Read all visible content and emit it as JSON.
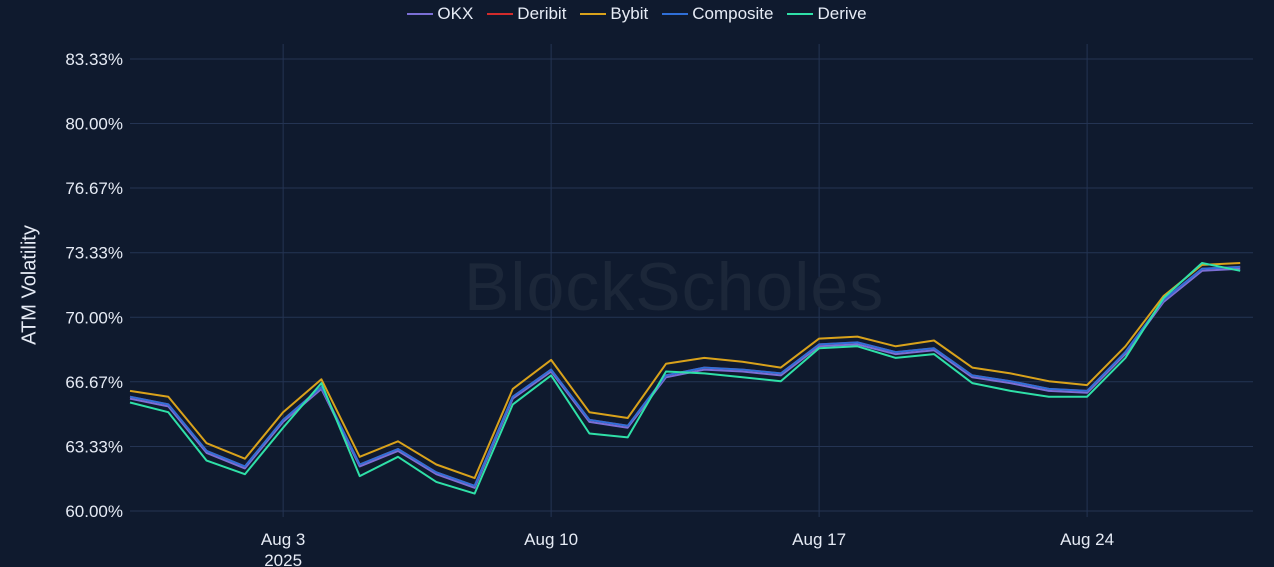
{
  "chart_data": {
    "type": "line",
    "ylabel": "ATM Volatility",
    "watermark": "BlockScholes",
    "ylim": [
      60.0,
      83.33
    ],
    "y_ticks": [
      "60.00%",
      "63.33%",
      "66.67%",
      "70.00%",
      "73.33%",
      "76.67%",
      "80.00%",
      "83.33%"
    ],
    "y_tick_values": [
      60.0,
      63.33,
      66.67,
      70.0,
      73.33,
      76.67,
      80.0,
      83.33
    ],
    "xlim": [
      "2025-07-30",
      "2025-08-28T08:00"
    ],
    "x_ticks": [
      {
        "date": "2025-08-03",
        "label": "Aug 3",
        "sublabel": "2025"
      },
      {
        "date": "2025-08-10",
        "label": "Aug 10",
        "sublabel": ""
      },
      {
        "date": "2025-08-17",
        "label": "Aug 17",
        "sublabel": ""
      },
      {
        "date": "2025-08-24",
        "label": "Aug 24",
        "sublabel": ""
      }
    ],
    "grid": true,
    "legend_position": "top-center",
    "x": [
      "2025-07-30",
      "2025-07-31",
      "2025-08-01",
      "2025-08-02",
      "2025-08-03",
      "2025-08-04",
      "2025-08-05",
      "2025-08-06",
      "2025-08-07",
      "2025-08-08",
      "2025-08-09",
      "2025-08-10",
      "2025-08-11",
      "2025-08-12",
      "2025-08-13",
      "2025-08-14",
      "2025-08-15",
      "2025-08-16",
      "2025-08-17",
      "2025-08-18",
      "2025-08-19",
      "2025-08-20",
      "2025-08-21",
      "2025-08-22",
      "2025-08-23",
      "2025-08-24",
      "2025-08-25",
      "2025-08-26",
      "2025-08-27",
      "2025-08-28"
    ],
    "series": [
      {
        "name": "OKX",
        "color": "#7b6fd6",
        "values": [
          65.8,
          65.4,
          63.0,
          62.2,
          64.6,
          66.3,
          62.3,
          63.1,
          61.9,
          61.2,
          65.8,
          67.2,
          64.6,
          64.3,
          66.9,
          67.3,
          67.2,
          67.0,
          68.5,
          68.6,
          68.1,
          68.3,
          66.9,
          66.6,
          66.2,
          66.1,
          68.1,
          70.8,
          72.4,
          72.5
        ]
      },
      {
        "name": "Deribit",
        "color": "#d22b2b",
        "values": [
          65.9,
          65.5,
          63.1,
          62.3,
          64.7,
          66.4,
          62.4,
          63.2,
          62.0,
          61.3,
          65.9,
          67.3,
          64.7,
          64.4,
          67.0,
          67.4,
          67.3,
          67.1,
          68.6,
          68.7,
          68.2,
          68.4,
          67.0,
          66.7,
          66.3,
          66.2,
          68.2,
          70.9,
          72.5,
          72.6
        ]
      },
      {
        "name": "Bybit",
        "color": "#d9a21b",
        "values": [
          66.2,
          65.9,
          63.5,
          62.7,
          65.1,
          66.8,
          62.8,
          63.6,
          62.4,
          61.7,
          66.3,
          67.8,
          65.1,
          64.8,
          67.6,
          67.9,
          67.7,
          67.4,
          68.9,
          69.0,
          68.5,
          68.8,
          67.4,
          67.1,
          66.7,
          66.5,
          68.5,
          71.1,
          72.7,
          72.8
        ]
      },
      {
        "name": "Composite",
        "color": "#2f6fd8",
        "values": [
          65.9,
          65.5,
          63.1,
          62.3,
          64.7,
          66.4,
          62.4,
          63.2,
          62.0,
          61.3,
          65.9,
          67.3,
          64.7,
          64.4,
          67.0,
          67.4,
          67.3,
          67.1,
          68.6,
          68.7,
          68.2,
          68.4,
          67.0,
          66.7,
          66.3,
          66.2,
          68.2,
          70.9,
          72.5,
          72.6
        ]
      },
      {
        "name": "Derive",
        "color": "#2fe0a8",
        "values": [
          65.6,
          65.1,
          62.6,
          61.9,
          64.3,
          66.6,
          61.8,
          62.8,
          61.5,
          60.9,
          65.5,
          67.0,
          64.0,
          63.8,
          67.2,
          67.1,
          66.9,
          66.7,
          68.4,
          68.5,
          67.9,
          68.1,
          66.6,
          66.2,
          65.9,
          65.9,
          67.9,
          71.0,
          72.8,
          72.4
        ]
      }
    ]
  }
}
